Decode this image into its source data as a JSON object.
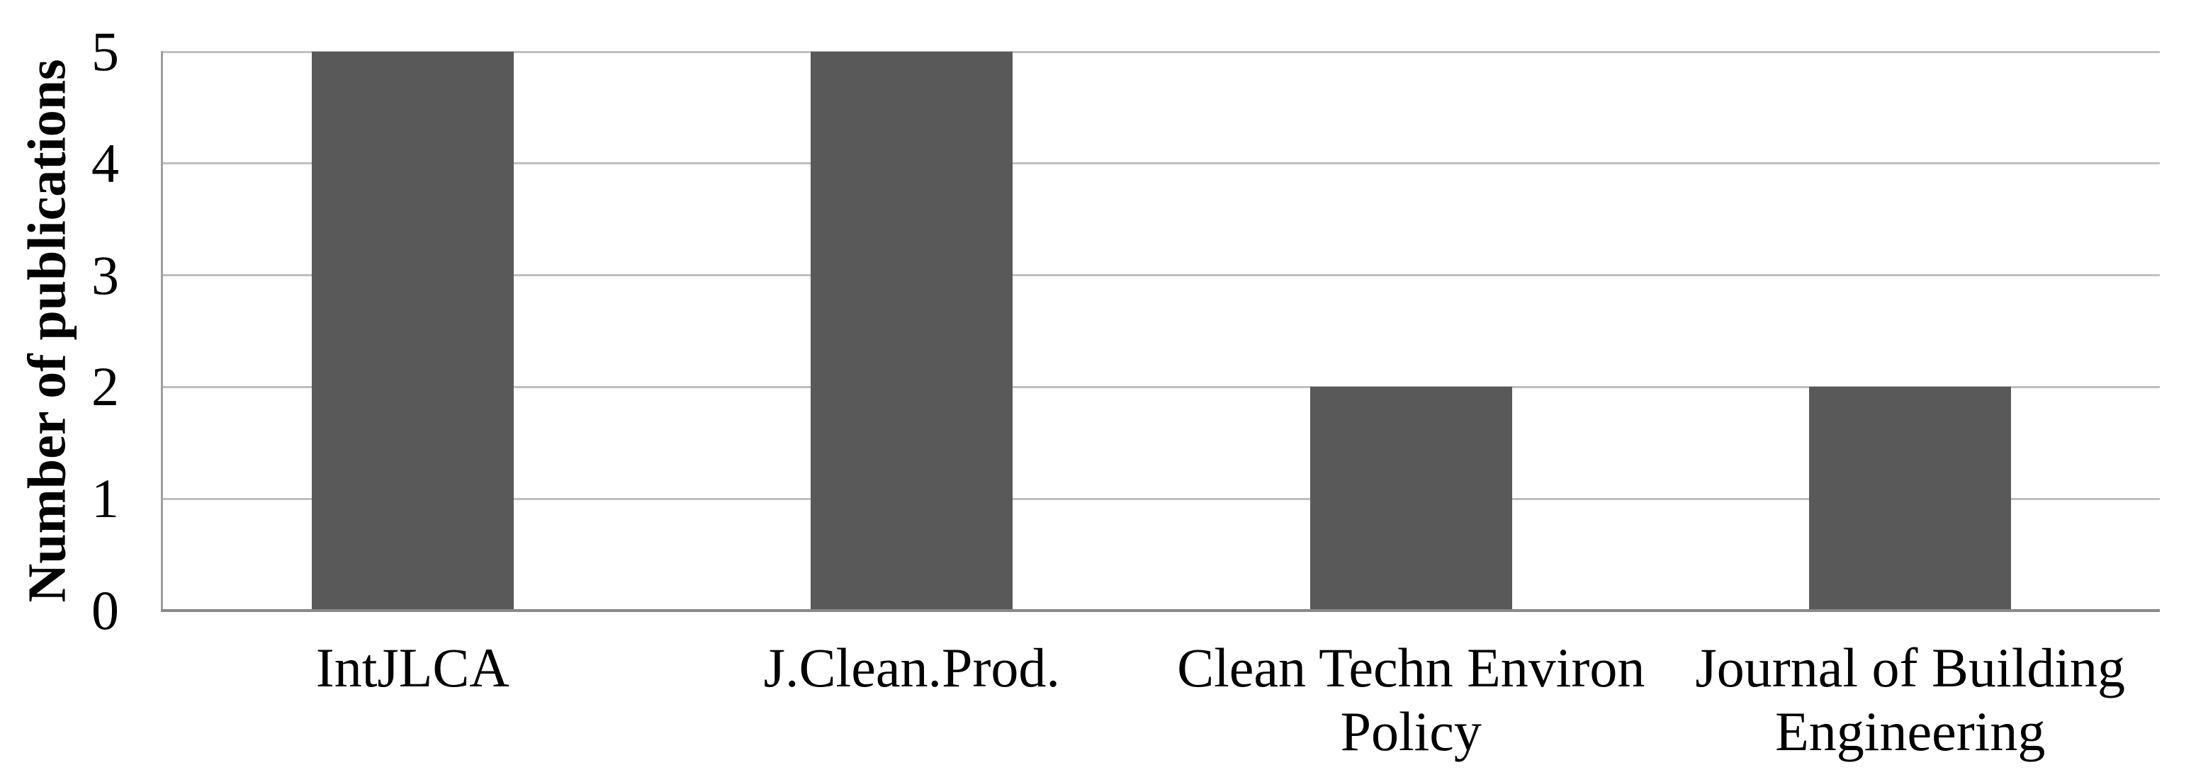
{
  "chart_data": {
    "type": "bar",
    "title": "",
    "categories": [
      "IntJLCA",
      "J.Clean.Prod.",
      "Clean Techn Environ Policy",
      "Journal of Building Engineering"
    ],
    "values": [
      5,
      5,
      2,
      2
    ],
    "series": [
      {
        "name": "Number of publications",
        "values": [
          5,
          5,
          2,
          2
        ]
      }
    ],
    "xlabel": "",
    "ylabel": "Number of publications",
    "ylim": [
      0,
      5
    ],
    "yticks": [
      0,
      1,
      2,
      3,
      4,
      5
    ],
    "grid": "horizontal-on",
    "legend_position": "none",
    "colors": {
      "bar": "#595959",
      "gridline": "#bfbfbf",
      "baseline": "#898989",
      "axis_line": "#9e9e9e",
      "text": "#000000",
      "background": "#ffffff"
    }
  }
}
